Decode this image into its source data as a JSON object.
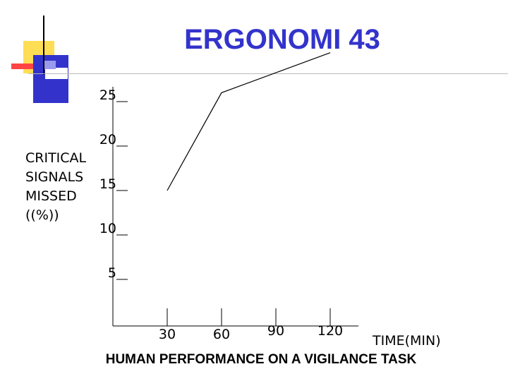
{
  "slide": {
    "title": "ERGONOMI 43"
  },
  "chart_data": {
    "type": "line",
    "title": "",
    "caption": "HUMAN PERFORMANCE ON A VIGILANCE TASK",
    "ylabel_lines": [
      "CRITICAL",
      "SIGNALS",
      "MISSED",
      "((%))"
    ],
    "xlabel": "TIME(MIN)",
    "xticks": [
      30,
      60,
      90,
      120
    ],
    "yticks": [
      5,
      10,
      15,
      20,
      25
    ],
    "series": [
      {
        "x": [
          30,
          60,
          120
        ],
        "y": [
          15,
          26,
          30.5
        ]
      }
    ],
    "colors": {
      "line": "#000000",
      "title": "#3333cc"
    }
  }
}
